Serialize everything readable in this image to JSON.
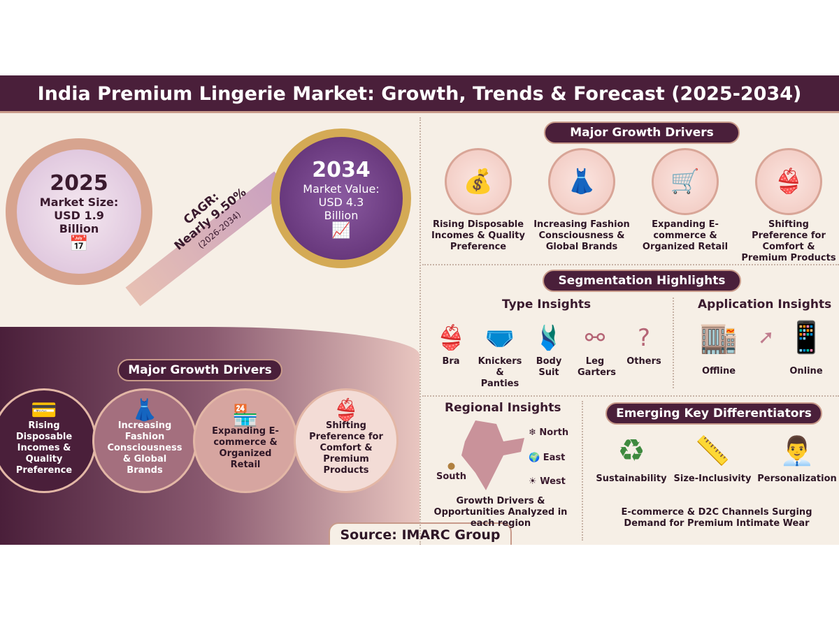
{
  "title": "India Premium Lingerie Market: Growth, Trends & Forecast (2025-2034)",
  "colors": {
    "title_bg": "#4a1f3a",
    "accent": "#c89a8a",
    "background": "#f6efe6",
    "dark_purple": "#5a2a4e"
  },
  "market": {
    "start": {
      "year": "2025",
      "label": "Market Size:",
      "value": "USD 1.9",
      "unit": "Billion",
      "icon": "calendar-icon"
    },
    "end": {
      "year": "2034",
      "label": "Market Value:",
      "value": "USD 4.3",
      "unit": "Billion",
      "icon": "growth-chart-icon"
    },
    "cagr": {
      "label": "CAGR:",
      "value": "Nearly 9.50%",
      "period": "(2026-2034)"
    }
  },
  "left_drivers": {
    "heading": "Major Growth Drivers",
    "items": [
      {
        "label": "Rising Disposable Incomes & Quality Preference",
        "icon": "money-hand-icon"
      },
      {
        "label": "Increasing Fashion Consciousness & Global Brands",
        "icon": "dress-globe-icon"
      },
      {
        "label": "Expanding E-commerce & Organized Retail",
        "icon": "online-store-icon"
      },
      {
        "label": "Shifting Preference for Comfort & Premium Products",
        "icon": "lingerie-feather-icon"
      }
    ]
  },
  "right_drivers": {
    "heading": "Major Growth Drivers",
    "items": [
      {
        "label": "Rising Disposable Incomes & Quality Preference",
        "icon": "money-hand-icon"
      },
      {
        "label": "Increasing Fashion Consciousness & Global Brands",
        "icon": "dress-globe-icon"
      },
      {
        "label": "Expanding E-commerce & Organized Retail",
        "icon": "online-store-icon"
      },
      {
        "label": "Shifting Preference for Comfort & Premium Products",
        "icon": "lingerie-feather-icon"
      }
    ]
  },
  "segmentation": {
    "heading": "Segmentation Highlights",
    "type": {
      "heading": "Type Insights",
      "items": [
        {
          "label": "Bra",
          "icon": "bra-icon"
        },
        {
          "label": "Knickers & Panties",
          "icon": "panties-icon"
        },
        {
          "label": "Body Suit",
          "icon": "bodysuit-icon"
        },
        {
          "label": "Leg Garters",
          "icon": "garter-icon"
        },
        {
          "label": "Others",
          "icon": "others-icon"
        }
      ]
    },
    "application": {
      "heading": "Application Insights",
      "items": [
        {
          "label": "Offline",
          "icon": "store-icon"
        },
        {
          "label": "Online",
          "icon": "smartphone-shopping-icon"
        }
      ]
    }
  },
  "regional": {
    "heading": "Regional Insights",
    "regions": [
      "North",
      "East",
      "West",
      "South"
    ],
    "caption": "Growth Drivers & Opportunities Analyzed in each region"
  },
  "differentiators": {
    "heading": "Emerging Key Differentiators",
    "items": [
      {
        "label": "Sustainability",
        "icon": "recycle-icon"
      },
      {
        "label": "Size-Inclusivity",
        "icon": "measuring-tape-icon"
      },
      {
        "label": "Personalization",
        "icon": "person-gear-icon"
      }
    ],
    "caption": "E-commerce & D2C Channels Surging Demand for Premium Intimate Wear"
  },
  "source": "Source: IMARC Group"
}
